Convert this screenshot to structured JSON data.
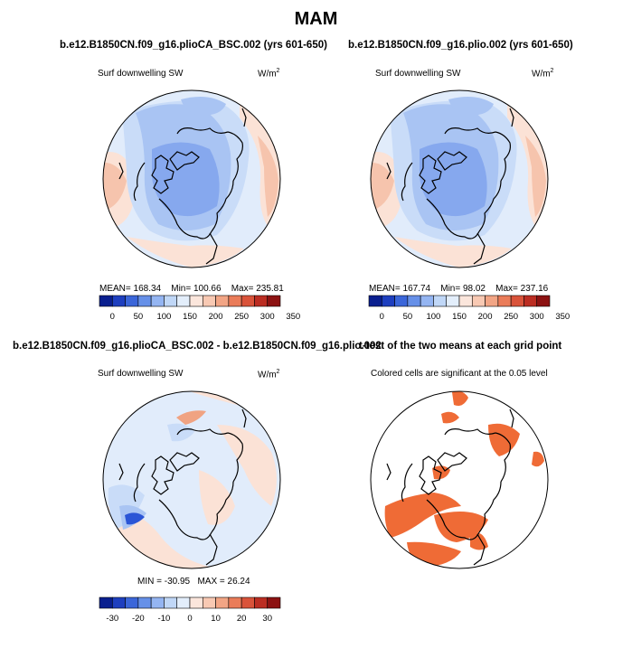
{
  "figure": {
    "title": "MAM"
  },
  "panels": {
    "top_left": {
      "title": "b.e12.B1850CN.f09_g16.plioCA_BSC.002 (yrs 601-650)",
      "field": "Surf downwelling SW",
      "units": "W/m",
      "units_exp": "2",
      "mean_label": "MEAN=",
      "mean": "168.34",
      "min_label": "Min=",
      "min": "100.66",
      "max_label": "Max=",
      "max": "235.81"
    },
    "top_right": {
      "title": "b.e12.B1850CN.f09_g16.plio.002 (yrs 601-650)",
      "field": "Surf downwelling SW",
      "units": "W/m",
      "units_exp": "2",
      "mean_label": "MEAN=",
      "mean": "167.74",
      "min_label": "Min=",
      "min": "98.02",
      "max_label": "Max=",
      "max": "237.16"
    },
    "bottom_left": {
      "title": "b.e12.B1850CN.f09_g16.plioCA_BSC.002 - b.e12.B1850CN.f09_g16.plio.002",
      "field": "Surf downwelling SW",
      "units": "W/m",
      "units_exp": "2",
      "min_label": "MIN =",
      "min": "-30.95",
      "max_label": "MAX =",
      "max": "26.24"
    },
    "bottom_right": {
      "title": "t-test of the two means at each grid point",
      "field": "Colored cells are significant at the 0.05 level"
    }
  },
  "colorbars": {
    "absolute": {
      "labels": [
        "0",
        "50",
        "100",
        "150",
        "200",
        "250",
        "300",
        "350"
      ],
      "colors": [
        "#0a1f8f",
        "#1e3fbf",
        "#3b66d9",
        "#6690e8",
        "#94b5f2",
        "#c0d7f7",
        "#e3eefb",
        "#fbe6dc",
        "#f8c9b3",
        "#f2a585",
        "#ea7c59",
        "#d9533a",
        "#bb2d22",
        "#8c1212"
      ]
    },
    "difference": {
      "labels": [
        "-30",
        "-20",
        "-10",
        "0",
        "10",
        "20",
        "30"
      ],
      "colors": [
        "#0a1f8f",
        "#1e3fbf",
        "#3b66d9",
        "#6690e8",
        "#94b5f2",
        "#c0d7f7",
        "#e3eefb",
        "#fbe6dc",
        "#f8c9b3",
        "#f2a585",
        "#ea7c59",
        "#d9533a",
        "#bb2d22",
        "#8c1212"
      ]
    }
  },
  "map_colors": {
    "deep_blue": "#86a8ee",
    "mid_blue": "#a9c4f3",
    "light_blue": "#c9dcf8",
    "pale_blue": "#e1ecfb",
    "pale_red": "#fbe2d6",
    "light_red": "#f6c4ad",
    "mid_red": "#f0a382",
    "sig_orange": "#ef6b36",
    "strong_blue": "#2b55d6",
    "coast": "#000000"
  }
}
